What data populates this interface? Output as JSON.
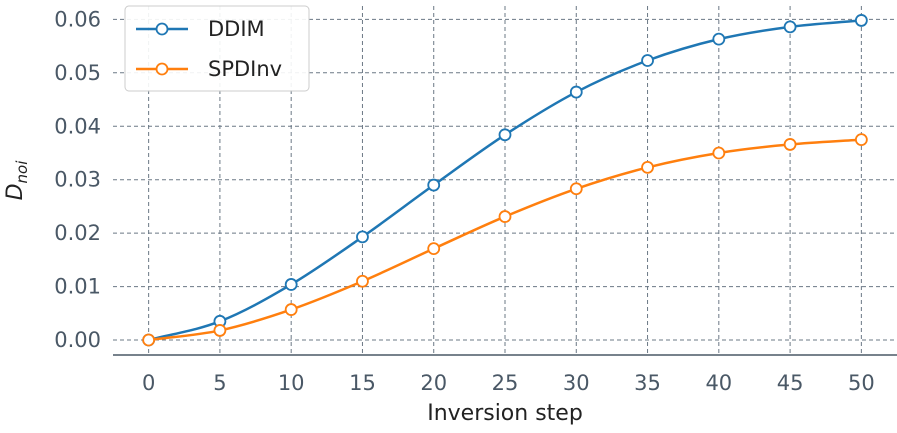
{
  "chart_data": {
    "type": "line",
    "title": "",
    "xlabel": "Inversion step",
    "ylabel_main": "D",
    "ylabel_sub": "noi",
    "x": [
      0,
      5,
      10,
      15,
      20,
      25,
      30,
      35,
      40,
      45,
      50
    ],
    "x_tick_labels": [
      "0",
      "5",
      "10",
      "15",
      "20",
      "25",
      "30",
      "35",
      "40",
      "45",
      "50"
    ],
    "y_ticks": [
      0,
      0.01,
      0.02,
      0.03,
      0.04,
      0.05,
      0.06
    ],
    "y_tick_labels": [
      "0.00",
      "0.01",
      "0.02",
      "0.03",
      "0.04",
      "0.05",
      "0.06"
    ],
    "xlim": [
      -2.5,
      52.5
    ],
    "ylim": [
      -0.0028,
      0.0625
    ],
    "grid": true,
    "legend_position": "top-left",
    "series": [
      {
        "name": "DDIM",
        "color": "#1f77b4",
        "values": [
          0,
          0.0035,
          0.0104,
          0.0193,
          0.029,
          0.0384,
          0.0464,
          0.0523,
          0.0563,
          0.0586,
          0.0598
        ]
      },
      {
        "name": "SPDInv",
        "color": "#ff7f0e",
        "values": [
          0,
          0.0018,
          0.0057,
          0.011,
          0.0171,
          0.0231,
          0.0283,
          0.0323,
          0.035,
          0.0366,
          0.0375
        ]
      }
    ]
  }
}
